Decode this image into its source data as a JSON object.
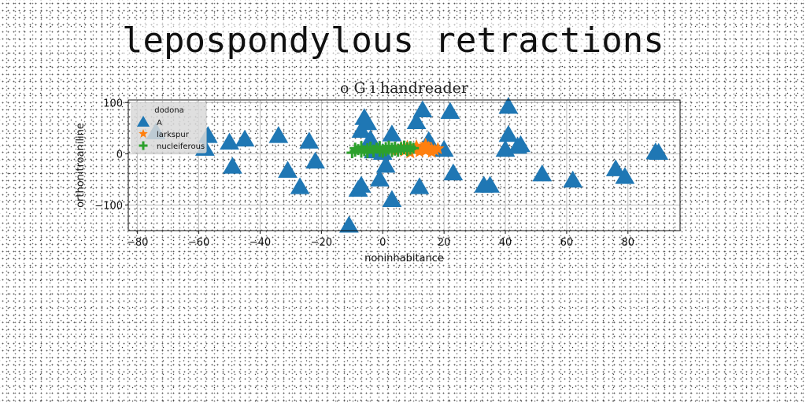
{
  "page": {
    "title": "lepospondylous retractions"
  },
  "chart_data": {
    "type": "scatter",
    "title": "o G i handreader",
    "xlabel": "noninhabitance",
    "ylabel": "orthonitroaniline",
    "xlim": [
      -83,
      97
    ],
    "ylim": [
      -150,
      105
    ],
    "xticks": [
      -80,
      -60,
      -40,
      -20,
      0,
      20,
      40,
      60,
      80
    ],
    "yticks": [
      -100,
      0,
      100
    ],
    "grid": true,
    "legend": {
      "title": "dodona",
      "position": "top-left"
    },
    "series": [
      {
        "name": "A",
        "marker": "triangle",
        "color": "#1f77b4",
        "points": [
          [
            -74,
            42
          ],
          [
            -58,
            10
          ],
          [
            -57,
            35
          ],
          [
            -50,
            22
          ],
          [
            -49,
            -25
          ],
          [
            -45,
            28
          ],
          [
            -34,
            35
          ],
          [
            -31,
            -33
          ],
          [
            -27,
            -65
          ],
          [
            -24,
            24
          ],
          [
            -22,
            -15
          ],
          [
            -11,
            -140
          ],
          [
            -8,
            -70
          ],
          [
            -7,
            -62
          ],
          [
            -7,
            45
          ],
          [
            -6,
            70
          ],
          [
            -5,
            60
          ],
          [
            -4,
            28
          ],
          [
            -3,
            5
          ],
          [
            -1,
            -50
          ],
          [
            0,
            2
          ],
          [
            1,
            -23
          ],
          [
            3,
            38
          ],
          [
            3,
            -90
          ],
          [
            11,
            62
          ],
          [
            12,
            -65
          ],
          [
            13,
            85
          ],
          [
            15,
            25
          ],
          [
            20,
            8
          ],
          [
            22,
            82
          ],
          [
            23,
            -38
          ],
          [
            33,
            -62
          ],
          [
            35,
            -62
          ],
          [
            40,
            8
          ],
          [
            41,
            92
          ],
          [
            41,
            37
          ],
          [
            44,
            14
          ],
          [
            45,
            17
          ],
          [
            52,
            -40
          ],
          [
            62,
            -52
          ],
          [
            76,
            -30
          ],
          [
            79,
            -45
          ],
          [
            89,
            3
          ],
          [
            90,
            2
          ]
        ]
      },
      {
        "name": "larkspur",
        "marker": "star",
        "color": "#ff7f0e",
        "points": [
          [
            2,
            10
          ],
          [
            4,
            6
          ],
          [
            6,
            12
          ],
          [
            7,
            5
          ],
          [
            8,
            14
          ],
          [
            9,
            2
          ],
          [
            10,
            8
          ],
          [
            11,
            15
          ],
          [
            12,
            4
          ],
          [
            13,
            10
          ],
          [
            14,
            18
          ],
          [
            14,
            6
          ],
          [
            15,
            12
          ],
          [
            16,
            3
          ],
          [
            16,
            9
          ],
          [
            17,
            7
          ],
          [
            18,
            10
          ]
        ]
      },
      {
        "name": "nucleiferous",
        "marker": "plus",
        "color": "#2ca02c",
        "points": [
          [
            -10,
            2
          ],
          [
            -9,
            5
          ],
          [
            -9,
            11
          ],
          [
            -8,
            8
          ],
          [
            -7,
            3
          ],
          [
            -7,
            14
          ],
          [
            -6,
            6
          ],
          [
            -5,
            10
          ],
          [
            -5,
            2
          ],
          [
            -4,
            13
          ],
          [
            -3,
            7
          ],
          [
            -3,
            4
          ],
          [
            -2,
            11
          ],
          [
            -1,
            5
          ],
          [
            -1,
            14
          ],
          [
            0,
            8
          ],
          [
            0,
            3
          ],
          [
            1,
            12
          ],
          [
            1,
            6
          ],
          [
            2,
            9
          ],
          [
            2,
            15
          ],
          [
            3,
            4
          ],
          [
            3,
            11
          ],
          [
            4,
            7
          ],
          [
            4,
            13
          ],
          [
            5,
            9
          ],
          [
            5,
            5
          ],
          [
            6,
            12
          ],
          [
            6,
            8
          ],
          [
            7,
            10
          ],
          [
            7,
            15
          ],
          [
            8,
            6
          ],
          [
            8,
            12
          ],
          [
            9,
            9
          ],
          [
            9,
            14
          ],
          [
            10,
            11
          ]
        ]
      }
    ]
  }
}
